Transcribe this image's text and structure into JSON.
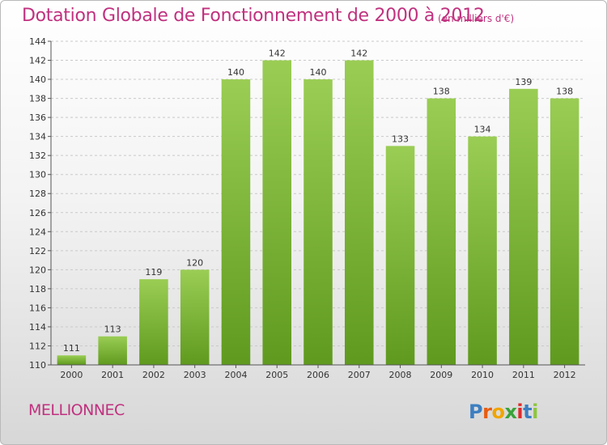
{
  "header": {
    "title": "Dotation Globale de Fonctionnement de 2000 à 2012",
    "unit": "(en milliers d'€)"
  },
  "footer": {
    "commune": "MELLIONNEC",
    "brand": {
      "letters": [
        "P",
        "r",
        "o",
        "x",
        "i",
        "t",
        "i"
      ],
      "colors": [
        "#3d7fc1",
        "#e85d12",
        "#f0a500",
        "#3aa23a",
        "#e02b2b",
        "#3d7fc1",
        "#8dc63f"
      ]
    }
  },
  "colors": {
    "title": "#c0317f",
    "bar_top": "#9acd54",
    "bar_bottom": "#5f9a1e",
    "grid": "#c9c9c9"
  },
  "chart_data": {
    "type": "bar",
    "title": "Dotation Globale de Fonctionnement de 2000 à 2012",
    "subtitle": "(en milliers d'€)",
    "xlabel": "",
    "ylabel": "",
    "categories": [
      "2000",
      "2001",
      "2002",
      "2003",
      "2004",
      "2005",
      "2006",
      "2007",
      "2008",
      "2009",
      "2010",
      "2011",
      "2012"
    ],
    "values": [
      111,
      113,
      119,
      120,
      140,
      142,
      140,
      142,
      133,
      138,
      134,
      139,
      138
    ],
    "ylim": [
      110,
      144
    ],
    "yticks": [
      110,
      112,
      114,
      116,
      118,
      120,
      122,
      124,
      126,
      128,
      130,
      132,
      134,
      136,
      138,
      140,
      142,
      144
    ],
    "grid": true,
    "legend": "none"
  }
}
